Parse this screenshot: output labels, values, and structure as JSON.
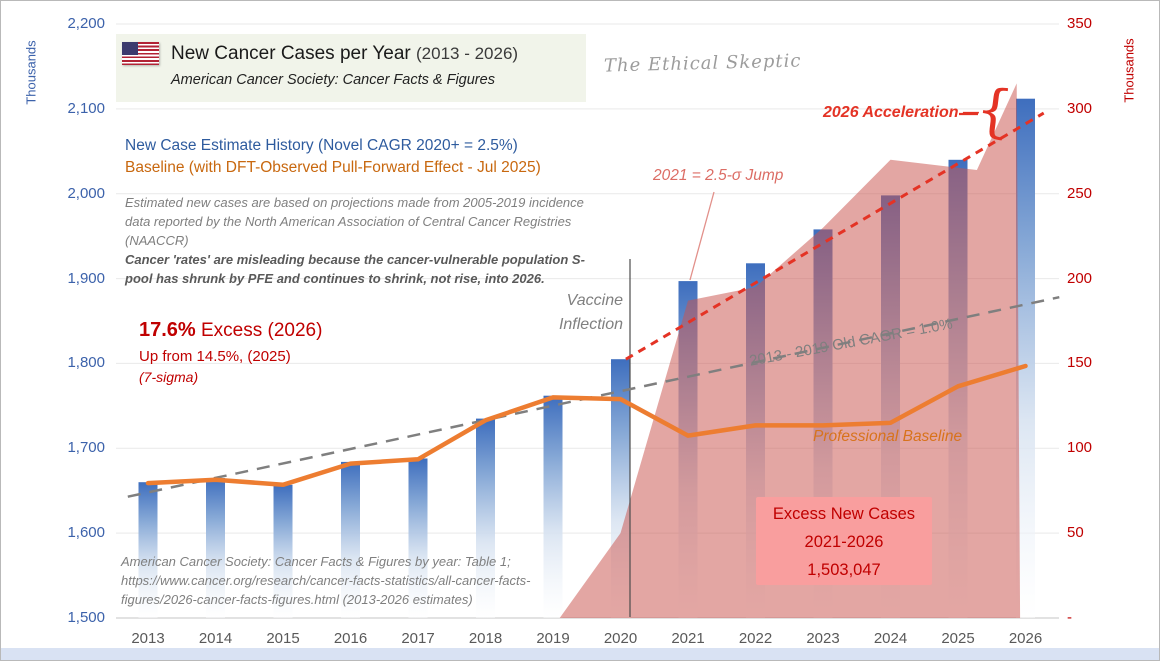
{
  "header": {
    "title": "New Cancer Cases per Year ",
    "title_range": "(2013 - 2026)",
    "subtitle": "American Cancer Society: Cancer Facts & Figures",
    "watermark": "The Ethical Skeptic"
  },
  "headings": {
    "line_blue": "New Case Estimate History (Novel CAGR 2020+ = 2.5%)",
    "line_orange": "Baseline (with DFT-Observed Pull-Forward Effect - Jul 2025)"
  },
  "notes": {
    "projection": "Estimated new cases are based on projections made from 2005-2019 incidence data reported by the North American Association of Central Cancer Registries (NAACCR)",
    "rates": "Cancer 'rates' are misleading because the cancer-vulnerable population S-pool has shrunk by PFE and continues to shrink, not rise, into 2026."
  },
  "excess_callout": {
    "pct": "17.6%",
    "rest": " Excess (2026)",
    "line2": "Up from 14.5%, (2025)",
    "line3": "(7-sigma)"
  },
  "annotations": {
    "vaccine_line1": "Vaccine",
    "vaccine_line2": "Inflection",
    "sigma_jump": "2021 = 2.5-σ Jump",
    "acceleration": "2026 Acceleration —",
    "brace": "{",
    "old_cagr": "2013 - 2019 Old CAGR = 1.0%",
    "professional_baseline": "Professional Baseline",
    "excess_box": [
      "Excess New Cases",
      "2021-2026",
      "1,503,047"
    ]
  },
  "source_note": {
    "lines": [
      "American Cancer Society: Cancer Facts & Figures by year: Table  1;",
      "https://www.cancer.org/research/cancer-facts-statistics/all-cancer-facts-",
      "figures/2026-cancer-facts-figures.html (2013-2026 estimates)"
    ]
  },
  "axes": {
    "left_title": "Thousands",
    "right_title": "Thousands"
  },
  "colors": {
    "bar_blue": "#3e6ebe",
    "baseline_orange": "#ED7D31",
    "old_cagr_gray": "#7f7f7f",
    "novel_cagr_red": "#e43325",
    "excess_area_red": "#c9544e",
    "left_axis_blue": "#3c62ab",
    "right_axis_red": "#c00000",
    "callout_dark_red": "#c00000"
  },
  "chart_data": {
    "type": "combo",
    "title": "New Cancer Cases per Year (2013 - 2026)",
    "categories": [
      2013,
      2014,
      2015,
      2016,
      2017,
      2018,
      2019,
      2020,
      2021,
      2022,
      2023,
      2024,
      2025,
      2026
    ],
    "left_axis": {
      "title": "Thousands",
      "min": 1500,
      "max": 2200,
      "tick_step": 100,
      "tick_labels": [
        "2,200",
        "2,100",
        "2,000",
        "1,900",
        "1,800",
        "1,700",
        "1,600",
        "1,500"
      ],
      "tick_values": [
        2200,
        2100,
        2000,
        1900,
        1800,
        1700,
        1600,
        1500
      ]
    },
    "right_axis": {
      "title": "Thousands",
      "min": 0,
      "max": 350,
      "tick_step": 50,
      "tick_labels": [
        "350",
        "300",
        "250",
        "200",
        "150",
        "100",
        "50",
        "-"
      ],
      "tick_values": [
        350,
        300,
        250,
        200,
        150,
        100,
        50,
        0
      ]
    },
    "series": [
      {
        "name": "New case estimates",
        "type": "bar",
        "axis": "left",
        "values": [
          1660,
          1665,
          1657,
          1684,
          1688,
          1735,
          1762,
          1805,
          1897,
          1918,
          1958,
          1998,
          2040,
          2112
        ]
      },
      {
        "name": "Professional Baseline",
        "type": "line",
        "axis": "left",
        "color": "#ED7D31",
        "values": [
          1659,
          1663,
          1657,
          1682,
          1687,
          1733,
          1760,
          1758,
          1715,
          1727,
          1727,
          1730,
          1773,
          1797
        ]
      },
      {
        "name": "2013 - 2019 Old CAGR = 1.0%",
        "type": "trendline",
        "axis": "left",
        "style": "dashed",
        "color": "#7f7f7f",
        "x": [
          2012.7,
          2026.5
        ],
        "values": [
          1643,
          1878
        ]
      },
      {
        "name": "Novel CAGR 2020+ = 2.5%",
        "type": "trendline",
        "axis": "left",
        "style": "dashed",
        "color": "#e43325",
        "x": [
          2020.08,
          2026.27
        ],
        "values": [
          1805,
          2095
        ]
      },
      {
        "name": "Excess New Cases 2021-2026 (area, right axis)",
        "type": "area",
        "axis": "right",
        "color": "#c9544e",
        "points": [
          [
            2019.1,
            0
          ],
          [
            2020,
            50
          ],
          [
            2021,
            187
          ],
          [
            2022,
            195
          ],
          [
            2023,
            230
          ],
          [
            2024,
            270
          ],
          [
            2025.28,
            264
          ],
          [
            2025.87,
            315
          ],
          [
            2025.92,
            0
          ]
        ],
        "total_label": "1,503,047"
      }
    ],
    "vaccine_inflection_x": 2020.14
  }
}
